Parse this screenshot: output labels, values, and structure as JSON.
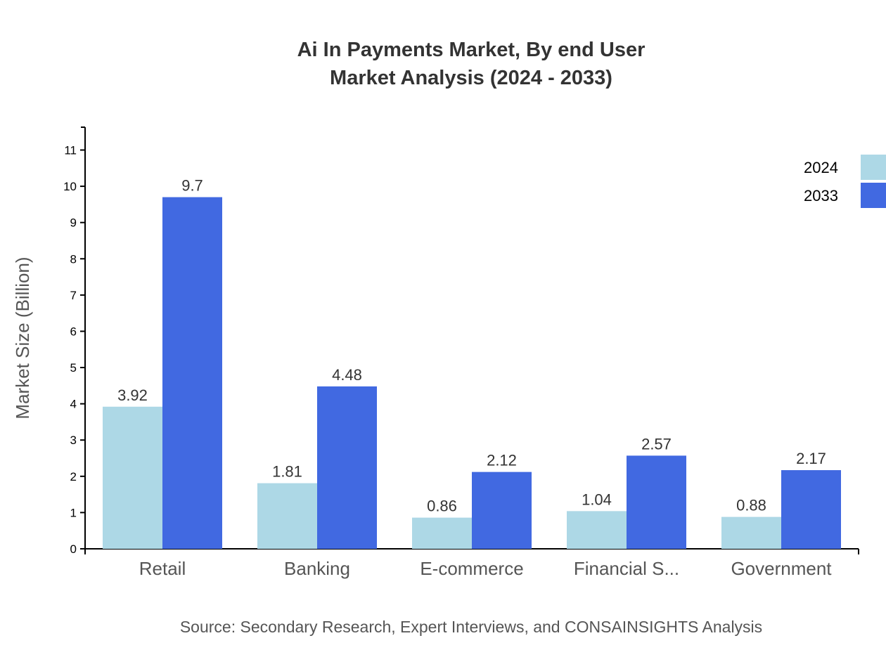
{
  "chart_data": {
    "type": "bar",
    "title_line1": "Ai In Payments Market, By end User",
    "title_line2": "Market Analysis (2024 - 2033)",
    "xlabel": "",
    "ylabel": "Market Size (Billion)",
    "ylim": [
      0,
      11.63
    ],
    "yticks": [
      0,
      1,
      2,
      3,
      4,
      5,
      6,
      7,
      8,
      9,
      10,
      11
    ],
    "categories": [
      "Retail",
      "Banking",
      "E-commerce",
      "Financial S...",
      "Government"
    ],
    "series": [
      {
        "name": "2024",
        "color": "#ADD8E6",
        "values": [
          3.92,
          1.81,
          0.86,
          1.04,
          0.88
        ],
        "labels": [
          "3.92",
          "1.81",
          "0.86",
          "1.04",
          "0.88"
        ]
      },
      {
        "name": "2033",
        "color": "#4169E1",
        "values": [
          9.7,
          4.48,
          2.12,
          2.57,
          2.17
        ],
        "labels": [
          "9.7",
          "4.48",
          "2.12",
          "2.57",
          "2.17"
        ]
      }
    ],
    "legend_position": "top-right",
    "grid": false,
    "source": "Source: Secondary Research, Expert Interviews, and CONSAINSIGHTS Analysis"
  }
}
